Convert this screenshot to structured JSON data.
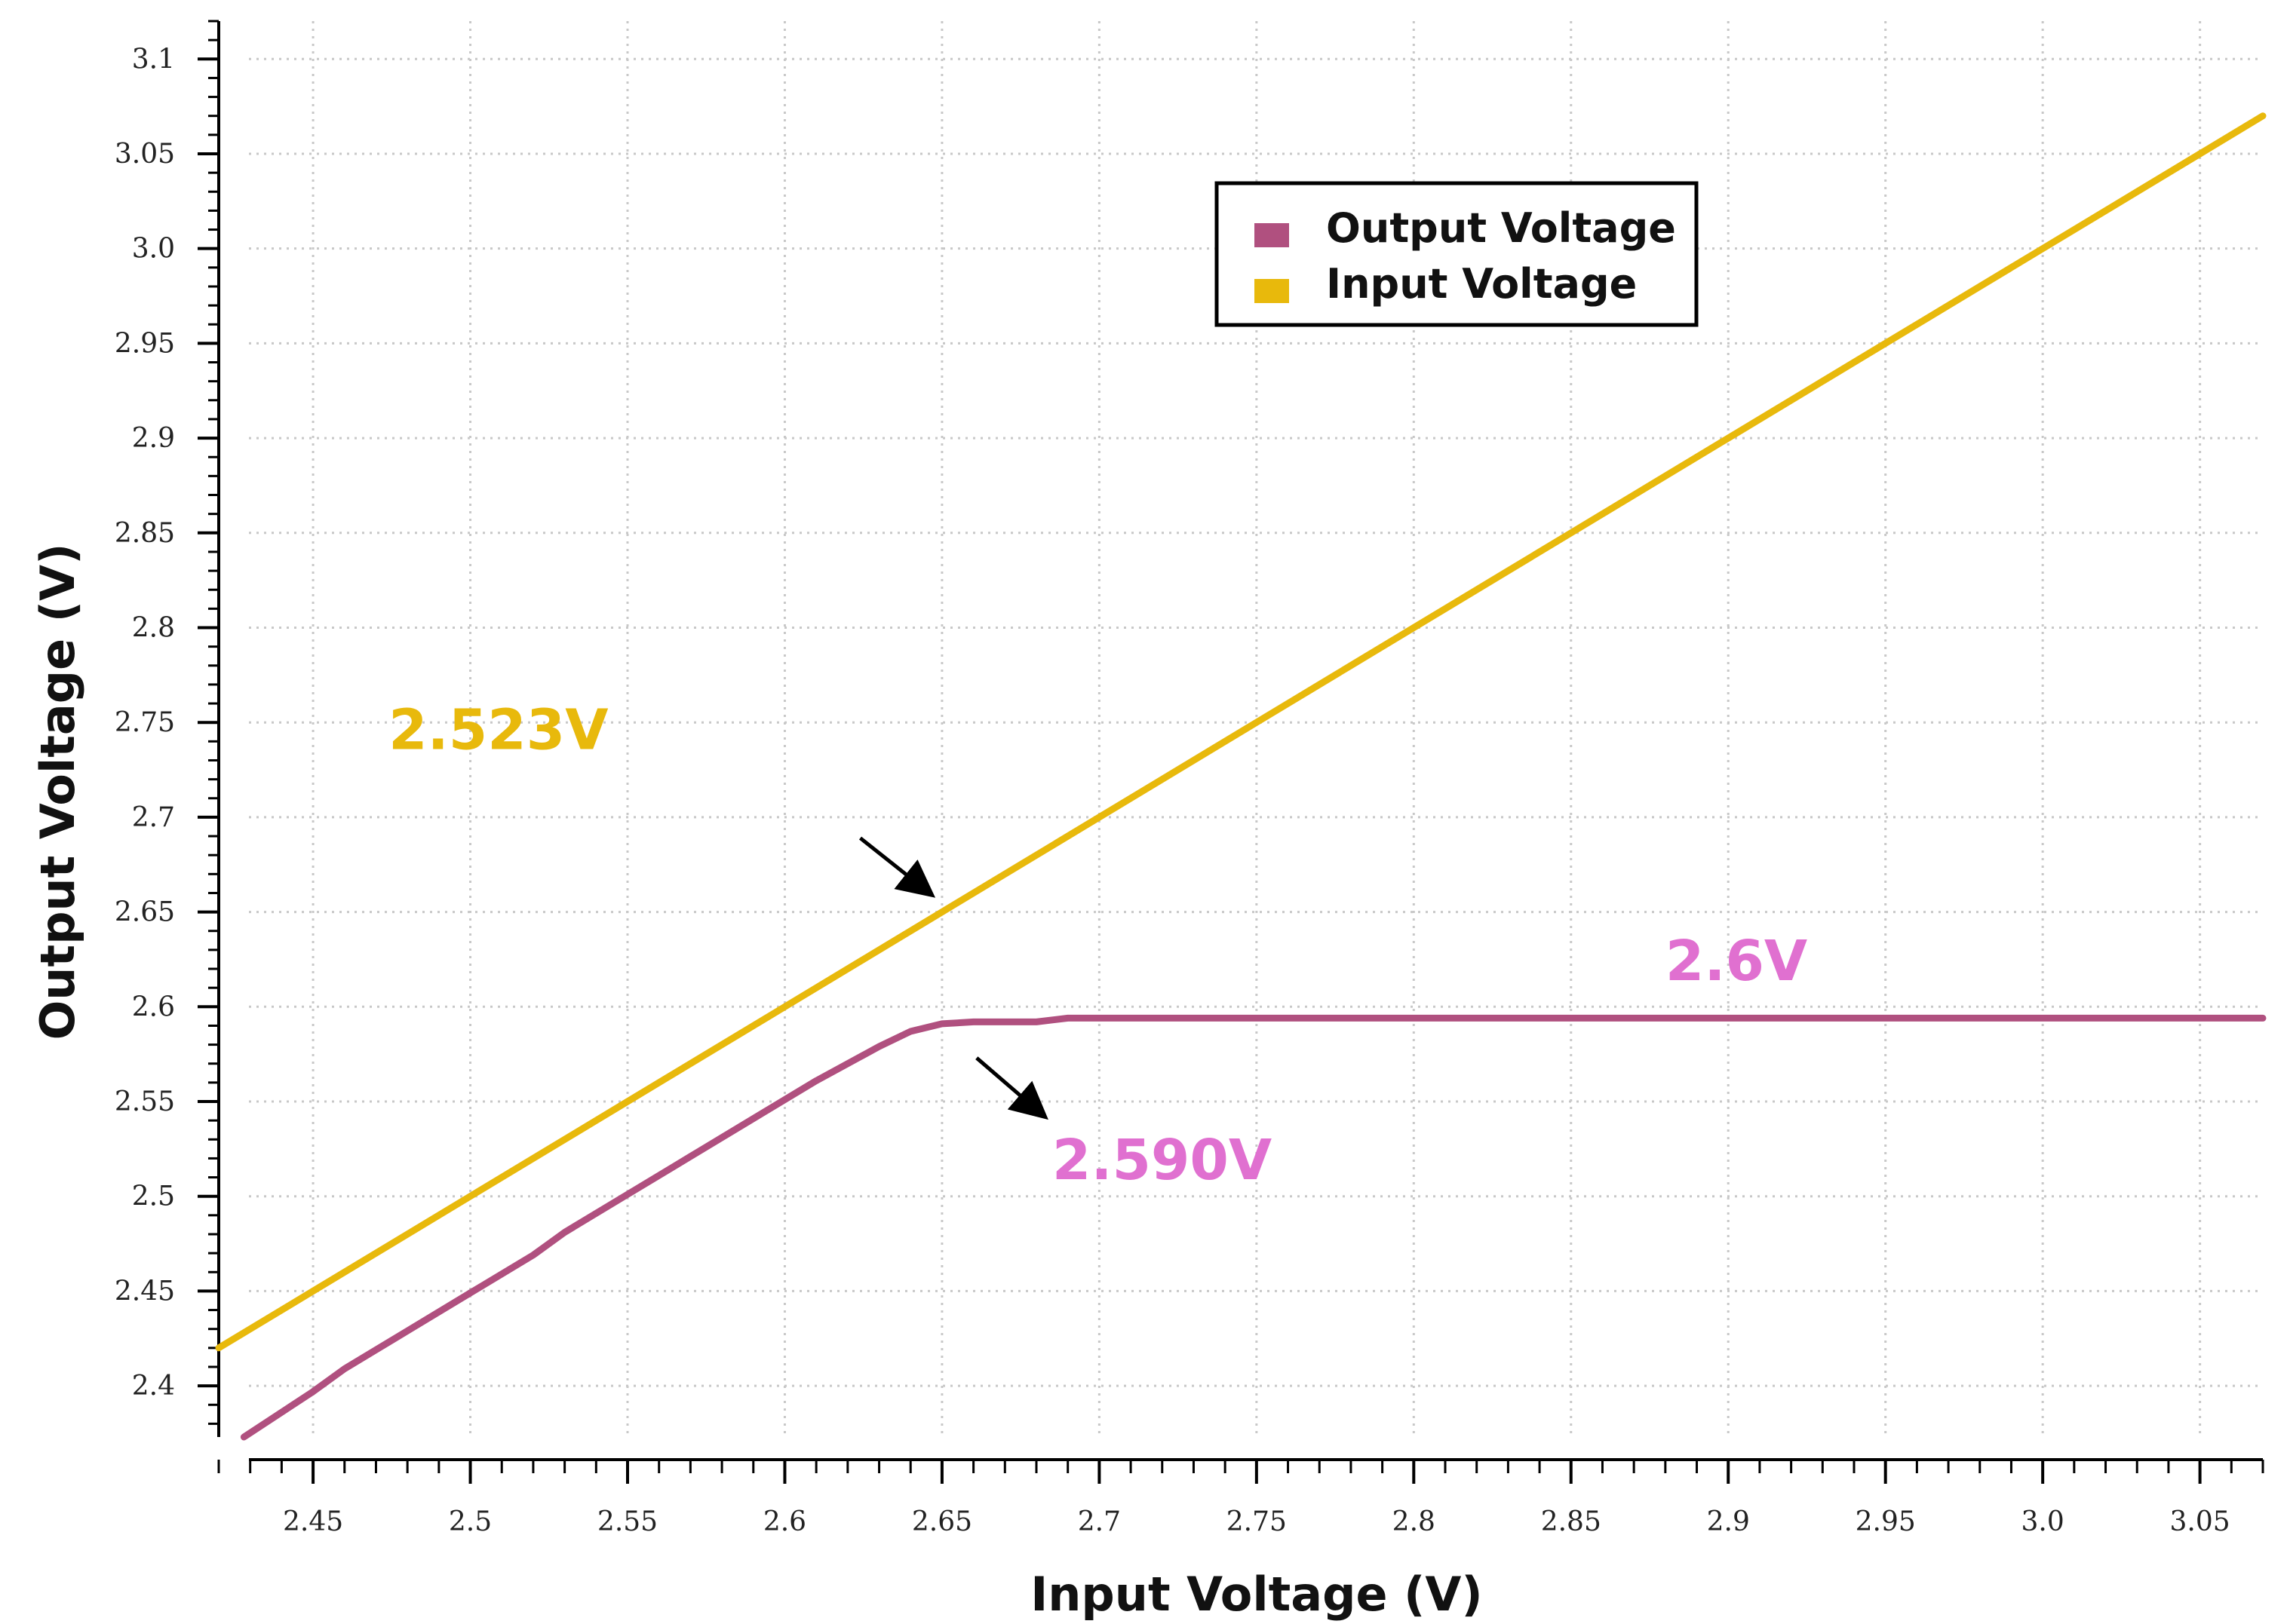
{
  "chart_data": {
    "type": "line",
    "title": "",
    "xlabel": "Input Voltage (V)",
    "ylabel": "Output Voltage (V)",
    "xlim": [
      2.42,
      3.07
    ],
    "ylim": [
      2.373,
      3.12
    ],
    "grid": true,
    "x_ticks": [
      2.45,
      2.5,
      2.55,
      2.6,
      2.65,
      2.7,
      2.75,
      2.8,
      2.85,
      2.9,
      2.95,
      3.0,
      3.05
    ],
    "x_tick_labels": [
      "2.45",
      "2.5",
      "2.55",
      "2.6",
      "2.65",
      "2.7",
      "2.75",
      "2.8",
      "2.85",
      "2.9",
      "2.95",
      "3.0",
      "3.05"
    ],
    "y_ticks": [
      2.4,
      2.45,
      2.5,
      2.55,
      2.6,
      2.65,
      2.7,
      2.75,
      2.8,
      2.85,
      2.9,
      2.95,
      3.0,
      3.05,
      3.1
    ],
    "y_tick_labels": [
      "2.4",
      "2.45",
      "2.5",
      "2.55",
      "2.6",
      "2.65",
      "2.7",
      "2.75",
      "2.8",
      "2.85",
      "2.9",
      "2.95",
      "3.0",
      "3.05",
      "3.1"
    ],
    "series": [
      {
        "name": "Output Voltage",
        "color": "#b0507f",
        "x": [
          2.428,
          2.45,
          2.46,
          2.48,
          2.5,
          2.52,
          2.53,
          2.55,
          2.57,
          2.59,
          2.61,
          2.63,
          2.64,
          2.65,
          2.66,
          2.68,
          2.69,
          2.7,
          2.75,
          2.8,
          2.85,
          2.9,
          2.95,
          3.0,
          3.05,
          3.07
        ],
        "y": [
          2.373,
          2.397,
          2.409,
          2.429,
          2.449,
          2.469,
          2.481,
          2.501,
          2.521,
          2.541,
          2.561,
          2.579,
          2.587,
          2.591,
          2.592,
          2.592,
          2.594,
          2.594,
          2.594,
          2.594,
          2.594,
          2.594,
          2.594,
          2.594,
          2.594,
          2.594
        ]
      },
      {
        "name": "Input Voltage",
        "color": "#e8b90c",
        "x": [
          2.42,
          2.45,
          2.5,
          2.55,
          2.6,
          2.65,
          2.7,
          2.75,
          2.8,
          2.85,
          2.9,
          2.95,
          3.0,
          3.05,
          3.07
        ],
        "y": [
          2.42,
          2.45,
          2.5,
          2.55,
          2.6,
          2.65,
          2.7,
          2.75,
          2.8,
          2.85,
          2.9,
          2.95,
          3.0,
          3.05,
          3.07
        ]
      }
    ],
    "legend": {
      "position": "top-center",
      "entries": [
        "Output Voltage",
        "Input Voltage"
      ]
    },
    "annotations": [
      {
        "text": "2.523V",
        "color": "#e8b90c",
        "x": 2.474,
        "y": 2.736,
        "arrow": {
          "x1": 2.624,
          "y1": 2.689,
          "x2": 2.646,
          "y2": 2.66
        }
      },
      {
        "text": "2.6V",
        "color": "#e070d0",
        "x": 2.88,
        "y": 2.614
      },
      {
        "text": "2.590V",
        "color": "#e070d0",
        "x": 2.685,
        "y": 2.509,
        "arrow": {
          "x1": 2.661,
          "y1": 2.573,
          "x2": 2.682,
          "y2": 2.543
        }
      }
    ]
  }
}
